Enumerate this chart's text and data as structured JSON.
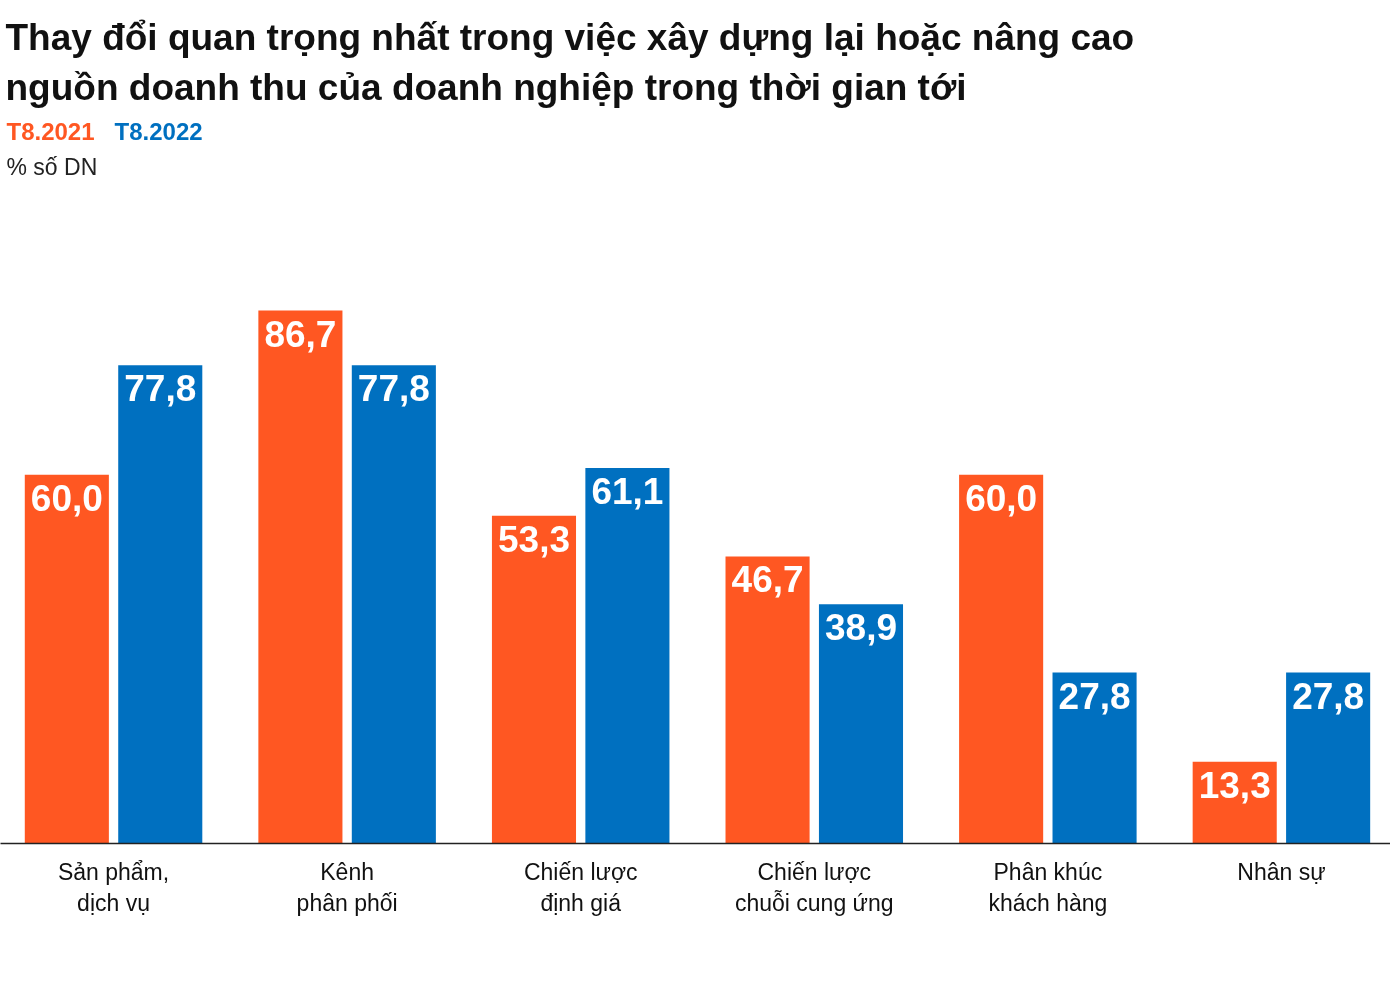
{
  "chart_data": {
    "type": "bar",
    "title": "Thay đổi quan trọng nhất trong việc xây dựng lại hoặc nâng cao nguồn doanh thu của doanh nghiệp trong thời gian tới",
    "annotations": [
      "% số DN"
    ],
    "categories": [
      "Sản phẩm, dịch vụ",
      "Kênh phân phối",
      "Chiến lược định giá",
      "Chiến lược chuỗi cung ứng",
      "Phân khúc khách hàng",
      "Nhân sự"
    ],
    "series": [
      {
        "name": "T8.2021",
        "color": "#ff5722",
        "values": [
          60.0,
          86.7,
          53.3,
          46.7,
          60.0,
          13.3
        ],
        "value_labels": [
          "60,0",
          "86,7",
          "53,3",
          "46,7",
          "60,0",
          "13,3"
        ]
      },
      {
        "name": "T8.2022",
        "color": "#0070c0",
        "values": [
          77.8,
          77.8,
          61.1,
          38.9,
          27.8,
          27.8
        ],
        "value_labels": [
          "77,8",
          "77,8",
          "61,1",
          "38,9",
          "27,8",
          "27,8"
        ]
      }
    ],
    "tick_labels": "x"
  }
}
